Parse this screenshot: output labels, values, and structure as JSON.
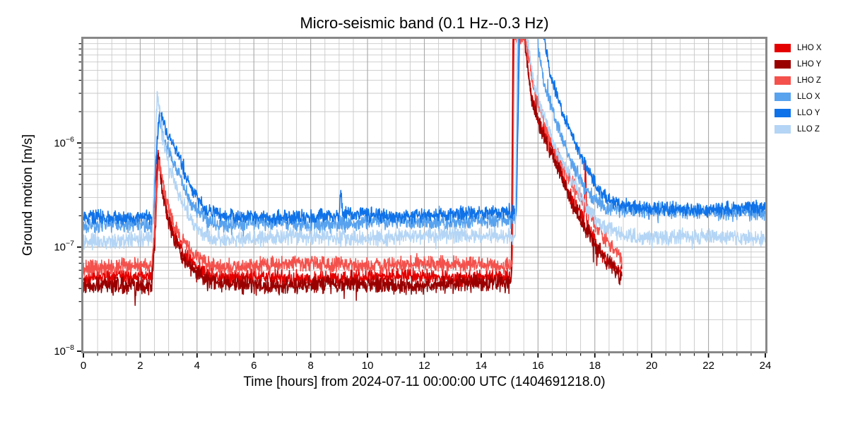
{
  "chart_data": {
    "type": "line",
    "title": "Micro-seismic band (0.1 Hz--0.3 Hz)",
    "xlabel": "Time [hours] from 2024-07-11 00:00:00 UTC (1404691218.0)",
    "ylabel": "Ground motion [m/s]",
    "xlim": [
      0,
      24
    ],
    "x_major_ticks": [
      0,
      2,
      4,
      6,
      8,
      10,
      12,
      14,
      16,
      18,
      20,
      22,
      24
    ],
    "x_minor_step": 0.5,
    "ylog10_lim": [
      -8,
      -5
    ],
    "y_tick_exponents": [
      -6,
      -7,
      -8
    ],
    "grid": true,
    "legend_position": "outside-right",
    "colors": {
      "spine": "#888888",
      "grid_major": "#a8a8a8",
      "grid_minor": "#c9c9c9",
      "tick": "#000000",
      "background": "#ffffff"
    },
    "series": [
      {
        "name": "LHO X",
        "color": "#e50000",
        "t_start": 0,
        "t_end": 18.95,
        "noise_dex": 0.05,
        "keypoints": [
          [
            0,
            5e-08
          ],
          [
            2.4,
            5.2e-08
          ],
          [
            2.5,
            1.4e-07
          ],
          [
            2.62,
            9e-07
          ],
          [
            2.75,
            4e-07
          ],
          [
            3.0,
            1.8e-07
          ],
          [
            3.5,
            9e-08
          ],
          [
            4.3,
            5.5e-08
          ],
          [
            5.0,
            5e-08
          ],
          [
            15.0,
            5.2e-08
          ],
          [
            15.06,
            5.4e-08
          ],
          [
            15.12,
            1.3e-05
          ],
          [
            15.5,
            1.2e-05
          ],
          [
            15.72,
            3.2e-06
          ],
          [
            16.0,
            1.6e-06
          ],
          [
            16.5,
            8.8e-07
          ],
          [
            17.1,
            3.3e-07
          ],
          [
            17.62,
            1.8e-07
          ],
          [
            17.67,
            7.2e-07
          ],
          [
            17.72,
            1.7e-07
          ],
          [
            18.3,
            8.5e-08
          ],
          [
            18.95,
            5.6e-08
          ]
        ]
      },
      {
        "name": "LHO Y",
        "color": "#990000",
        "t_start": 0,
        "t_end": 18.95,
        "noise_dex": 0.055,
        "keypoints": [
          [
            0,
            4.2e-08
          ],
          [
            2.4,
            4.4e-08
          ],
          [
            2.52,
            1.2e-07
          ],
          [
            2.63,
            7.8e-07
          ],
          [
            2.8,
            3.2e-07
          ],
          [
            3.1,
            1.4e-07
          ],
          [
            3.6,
            7e-08
          ],
          [
            4.3,
            4.6e-08
          ],
          [
            5.0,
            4.3e-08
          ],
          [
            15.02,
            4.4e-08
          ],
          [
            15.08,
            4.8e-08
          ],
          [
            15.14,
            1.2e-05
          ],
          [
            15.52,
            1.1e-05
          ],
          [
            15.75,
            2.8e-06
          ],
          [
            16.1,
            1.4e-06
          ],
          [
            16.6,
            7e-07
          ],
          [
            17.15,
            2.9e-07
          ],
          [
            17.7,
            1.4e-07
          ],
          [
            18.3,
            7.8e-08
          ],
          [
            18.95,
            5e-08
          ]
        ]
      },
      {
        "name": "LHO Z",
        "color": "#f4514c",
        "t_start": 0,
        "t_end": 18.95,
        "noise_dex": 0.05,
        "keypoints": [
          [
            0,
            6.4e-08
          ],
          [
            2.4,
            6.6e-08
          ],
          [
            2.53,
            1.7e-07
          ],
          [
            2.65,
            6.8e-07
          ],
          [
            2.85,
            3.3e-07
          ],
          [
            3.2,
            1.5e-07
          ],
          [
            3.8,
            8.6e-08
          ],
          [
            4.5,
            6.7e-08
          ],
          [
            12.0,
            6.8e-08
          ],
          [
            15.04,
            6.7e-08
          ],
          [
            15.1,
            7.2e-08
          ],
          [
            15.16,
            1.1e-05
          ],
          [
            15.58,
            1.05e-05
          ],
          [
            15.85,
            3.4e-06
          ],
          [
            16.3,
            1.3e-06
          ],
          [
            16.9,
            5.6e-07
          ],
          [
            17.5,
            2.9e-07
          ],
          [
            18.1,
            1.5e-07
          ],
          [
            18.6,
            1e-07
          ],
          [
            18.95,
            7.8e-08
          ]
        ]
      },
      {
        "name": "LLO X",
        "color": "#58a2ee",
        "t_start": 0,
        "t_end": 24,
        "noise_dex": 0.05,
        "keypoints": [
          [
            0,
            1.6e-07
          ],
          [
            2.45,
            1.65e-07
          ],
          [
            2.58,
            9e-07
          ],
          [
            2.66,
            1.7e-06
          ],
          [
            2.9,
            9.5e-07
          ],
          [
            3.3,
            5.5e-07
          ],
          [
            3.8,
            2.7e-07
          ],
          [
            4.4,
            1.8e-07
          ],
          [
            5.0,
            1.65e-07
          ],
          [
            15.22,
            1.8e-07
          ],
          [
            15.32,
            1.5e-05
          ],
          [
            15.9,
            1.4e-05
          ],
          [
            16.2,
            3.6e-06
          ],
          [
            16.6,
            1.7e-06
          ],
          [
            17.2,
            6.2e-07
          ],
          [
            17.8,
            3.3e-07
          ],
          [
            18.4,
            2.4e-07
          ],
          [
            19.5,
            2.2e-07
          ],
          [
            24,
            2.2e-07
          ]
        ]
      },
      {
        "name": "LLO Y",
        "color": "#0f72e8",
        "t_start": 0,
        "t_end": 24,
        "noise_dex": 0.045,
        "keypoints": [
          [
            0,
            1.9e-07
          ],
          [
            2.45,
            1.95e-07
          ],
          [
            2.6,
            1.1e-06
          ],
          [
            2.68,
            2.2e-06
          ],
          [
            3.0,
            1.1e-06
          ],
          [
            3.3,
            8e-07
          ],
          [
            3.7,
            4e-07
          ],
          [
            4.3,
            2.2e-07
          ],
          [
            5.0,
            1.95e-07
          ],
          [
            9.0,
            2e-07
          ],
          [
            9.06,
            3.4e-07
          ],
          [
            9.12,
            2e-07
          ],
          [
            15.24,
            2.1e-07
          ],
          [
            15.36,
            1.6e-05
          ],
          [
            16.12,
            1.5e-05
          ],
          [
            16.45,
            4.6e-06
          ],
          [
            16.9,
            1.9e-06
          ],
          [
            17.5,
            7.6e-07
          ],
          [
            18.1,
            3.6e-07
          ],
          [
            18.7,
            2.5e-07
          ],
          [
            19.5,
            2.35e-07
          ],
          [
            24,
            2.35e-07
          ]
        ]
      },
      {
        "name": "LLO Z",
        "color": "#b4d5f5",
        "t_start": 0,
        "t_end": 24,
        "noise_dex": 0.05,
        "keypoints": [
          [
            0,
            1.15e-07
          ],
          [
            2.42,
            1.2e-07
          ],
          [
            2.52,
            8e-07
          ],
          [
            2.6,
            3e-06
          ],
          [
            2.78,
            1.1e-06
          ],
          [
            3.0,
            6.2e-07
          ],
          [
            3.4,
            3e-07
          ],
          [
            3.9,
            1.6e-07
          ],
          [
            4.4,
            1.25e-07
          ],
          [
            5.0,
            1.2e-07
          ],
          [
            15.2,
            1.3e-07
          ],
          [
            15.28,
            1.45e-05
          ],
          [
            15.58,
            1.3e-05
          ],
          [
            15.8,
            4.5e-06
          ],
          [
            16.1,
            2.2e-06
          ],
          [
            16.5,
            1.05e-06
          ],
          [
            17.0,
            5.5e-07
          ],
          [
            17.6,
            2.6e-07
          ],
          [
            18.2,
            1.65e-07
          ],
          [
            19.0,
            1.3e-07
          ],
          [
            24,
            1.2e-07
          ]
        ]
      }
    ]
  }
}
